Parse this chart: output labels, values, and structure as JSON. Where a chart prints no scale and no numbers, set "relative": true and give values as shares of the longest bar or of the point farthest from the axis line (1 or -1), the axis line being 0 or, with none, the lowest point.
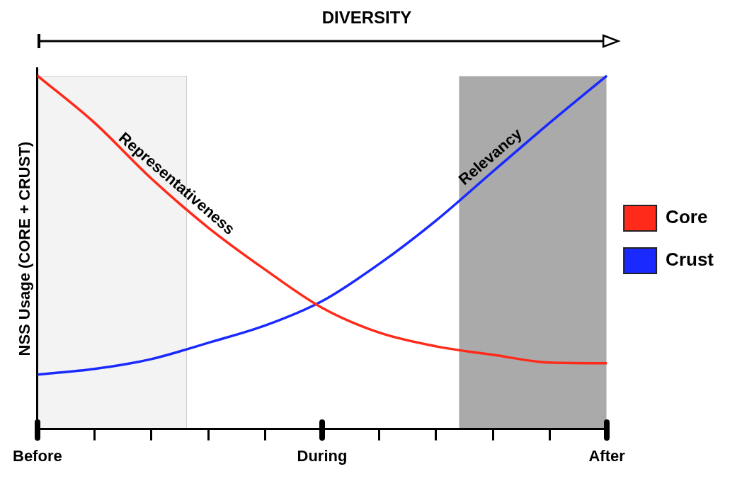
{
  "chart_data": {
    "type": "line",
    "title": "DIVERSITY",
    "ylabel": "NSS Usage (CORE + CRUST)",
    "relative": true,
    "categories": [
      "Before",
      null,
      null,
      null,
      null,
      "During",
      null,
      null,
      null,
      null,
      "After"
    ],
    "series": [
      {
        "name": "Core",
        "color": "#ff2a1a",
        "values": [
          1.0,
          0.867,
          0.709,
          0.57,
          0.451,
          0.343,
          0.273,
          0.234,
          0.21,
          0.188,
          0.186
        ]
      },
      {
        "name": "Crust",
        "color": "#1a2aff",
        "values": [
          0.154,
          0.17,
          0.198,
          0.244,
          0.293,
          0.362,
          0.467,
          0.59,
          0.729,
          0.867,
          1.0
        ]
      }
    ],
    "annotations": [
      "Representativeness",
      "Relevancy"
    ],
    "grid": false,
    "legend": "right",
    "marker": "none",
    "line_style": "solid"
  }
}
